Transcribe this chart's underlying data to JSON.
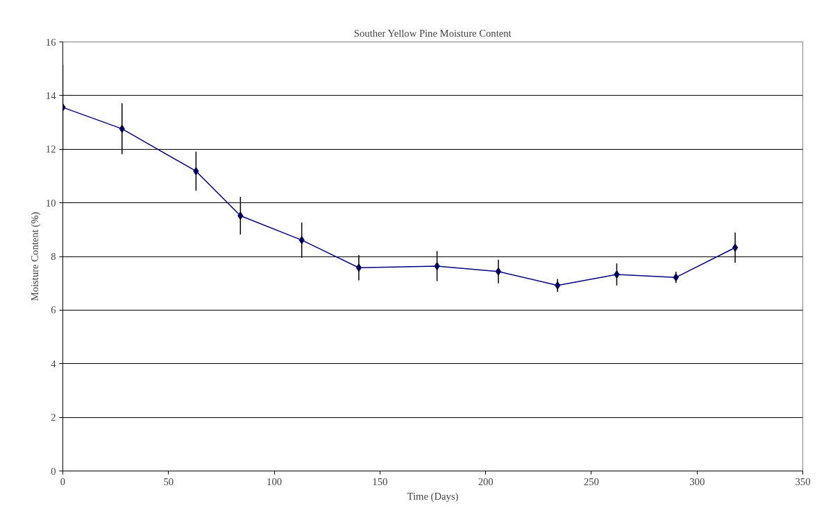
{
  "chart_data": {
    "type": "line",
    "title": "Souther Yellow Pine Moisture Content",
    "xlabel": "Time (Days)",
    "ylabel": "Moisture Content (%)",
    "x": [
      0,
      28,
      63,
      84,
      113,
      140,
      177,
      206,
      234,
      262,
      290,
      318
    ],
    "series": [
      {
        "color": "#000080",
        "values": [
          13.56,
          12.76,
          11.18,
          9.52,
          8.61,
          7.58,
          7.64,
          7.44,
          6.92,
          7.33,
          7.22,
          8.33
        ],
        "errors": [
          1.6,
          0.95,
          0.73,
          0.7,
          0.66,
          0.47,
          0.56,
          0.44,
          0.24,
          0.41,
          0.21,
          0.56
        ]
      }
    ],
    "xlim": [
      0,
      350
    ],
    "xticks": [
      0,
      50,
      100,
      150,
      200,
      250,
      300,
      350
    ],
    "ylim": [
      0,
      16
    ],
    "yticks": [
      0,
      2,
      4,
      6,
      8,
      10,
      12,
      14,
      16
    ],
    "grid": "y",
    "marker": "diamond",
    "line_style": "solid"
  }
}
